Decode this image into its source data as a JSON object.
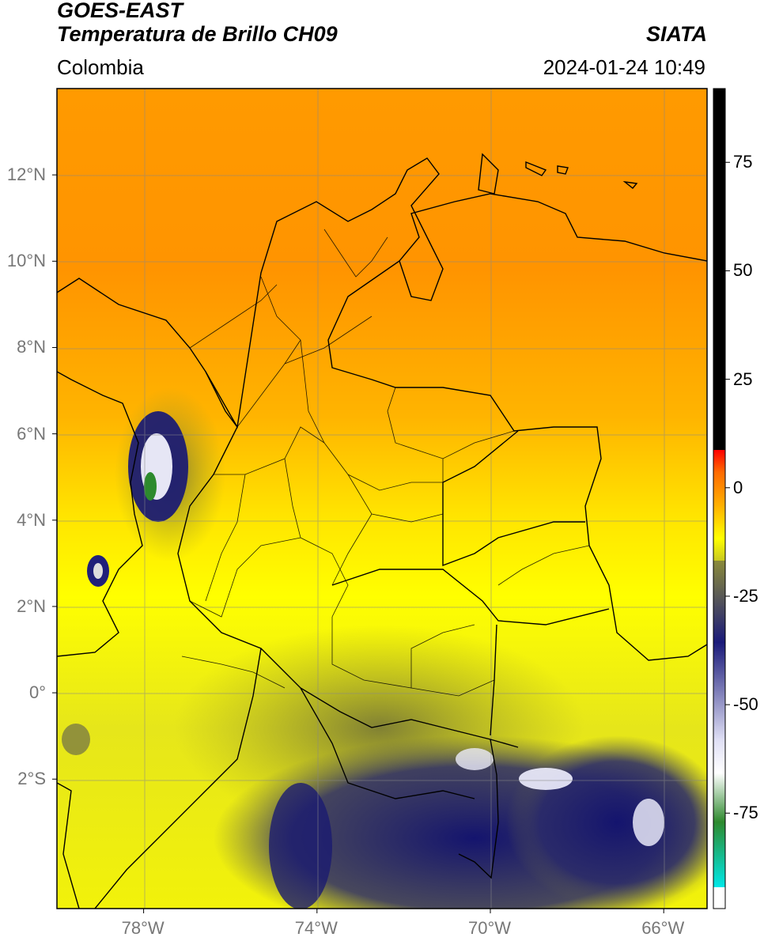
{
  "header": {
    "satellite": "GOES-EAST",
    "product": "Temperatura de Brillo CH09",
    "brand": "SIATA",
    "region": "Colombia",
    "datetime": "2024-01-24 10:49"
  },
  "map": {
    "lat_ticks": [
      {
        "lat": 12,
        "label": "12°N"
      },
      {
        "lat": 10,
        "label": "10°N"
      },
      {
        "lat": 8,
        "label": "8°N"
      },
      {
        "lat": 6,
        "label": "6°N"
      },
      {
        "lat": 4,
        "label": "4°N"
      },
      {
        "lat": 2,
        "label": "2°N"
      },
      {
        "lat": 0,
        "label": "0°"
      },
      {
        "lat": -2,
        "label": "2°S"
      }
    ],
    "lon_ticks": [
      {
        "lon": -78,
        "label": "78°W"
      },
      {
        "lon": -74,
        "label": "74°W"
      },
      {
        "lon": -70,
        "label": "70°W"
      },
      {
        "lon": -66,
        "label": "66°W"
      }
    ],
    "extent": {
      "lon": [
        -80,
        -65
      ],
      "lat": [
        -5,
        14
      ]
    }
  },
  "colorbar": {
    "ticks": [
      {
        "value": 75,
        "label": "75"
      },
      {
        "value": 50,
        "label": "50"
      },
      {
        "value": 25,
        "label": "25"
      },
      {
        "value": 0,
        "label": "0"
      },
      {
        "value": -25,
        "label": "-25"
      },
      {
        "value": -50,
        "label": "-50"
      },
      {
        "value": -75,
        "label": "-75"
      }
    ],
    "range": [
      -97,
      92
    ],
    "colors": {
      "black": "#000000",
      "red": "#ff1a00",
      "orange": "#ff8c00",
      "yellow": "#ffff00",
      "olive": "#8f8f2a",
      "navy": "#10106e",
      "white": "#ffffff",
      "green": "#2d8a2d",
      "cyan": "#00e5e5"
    }
  }
}
